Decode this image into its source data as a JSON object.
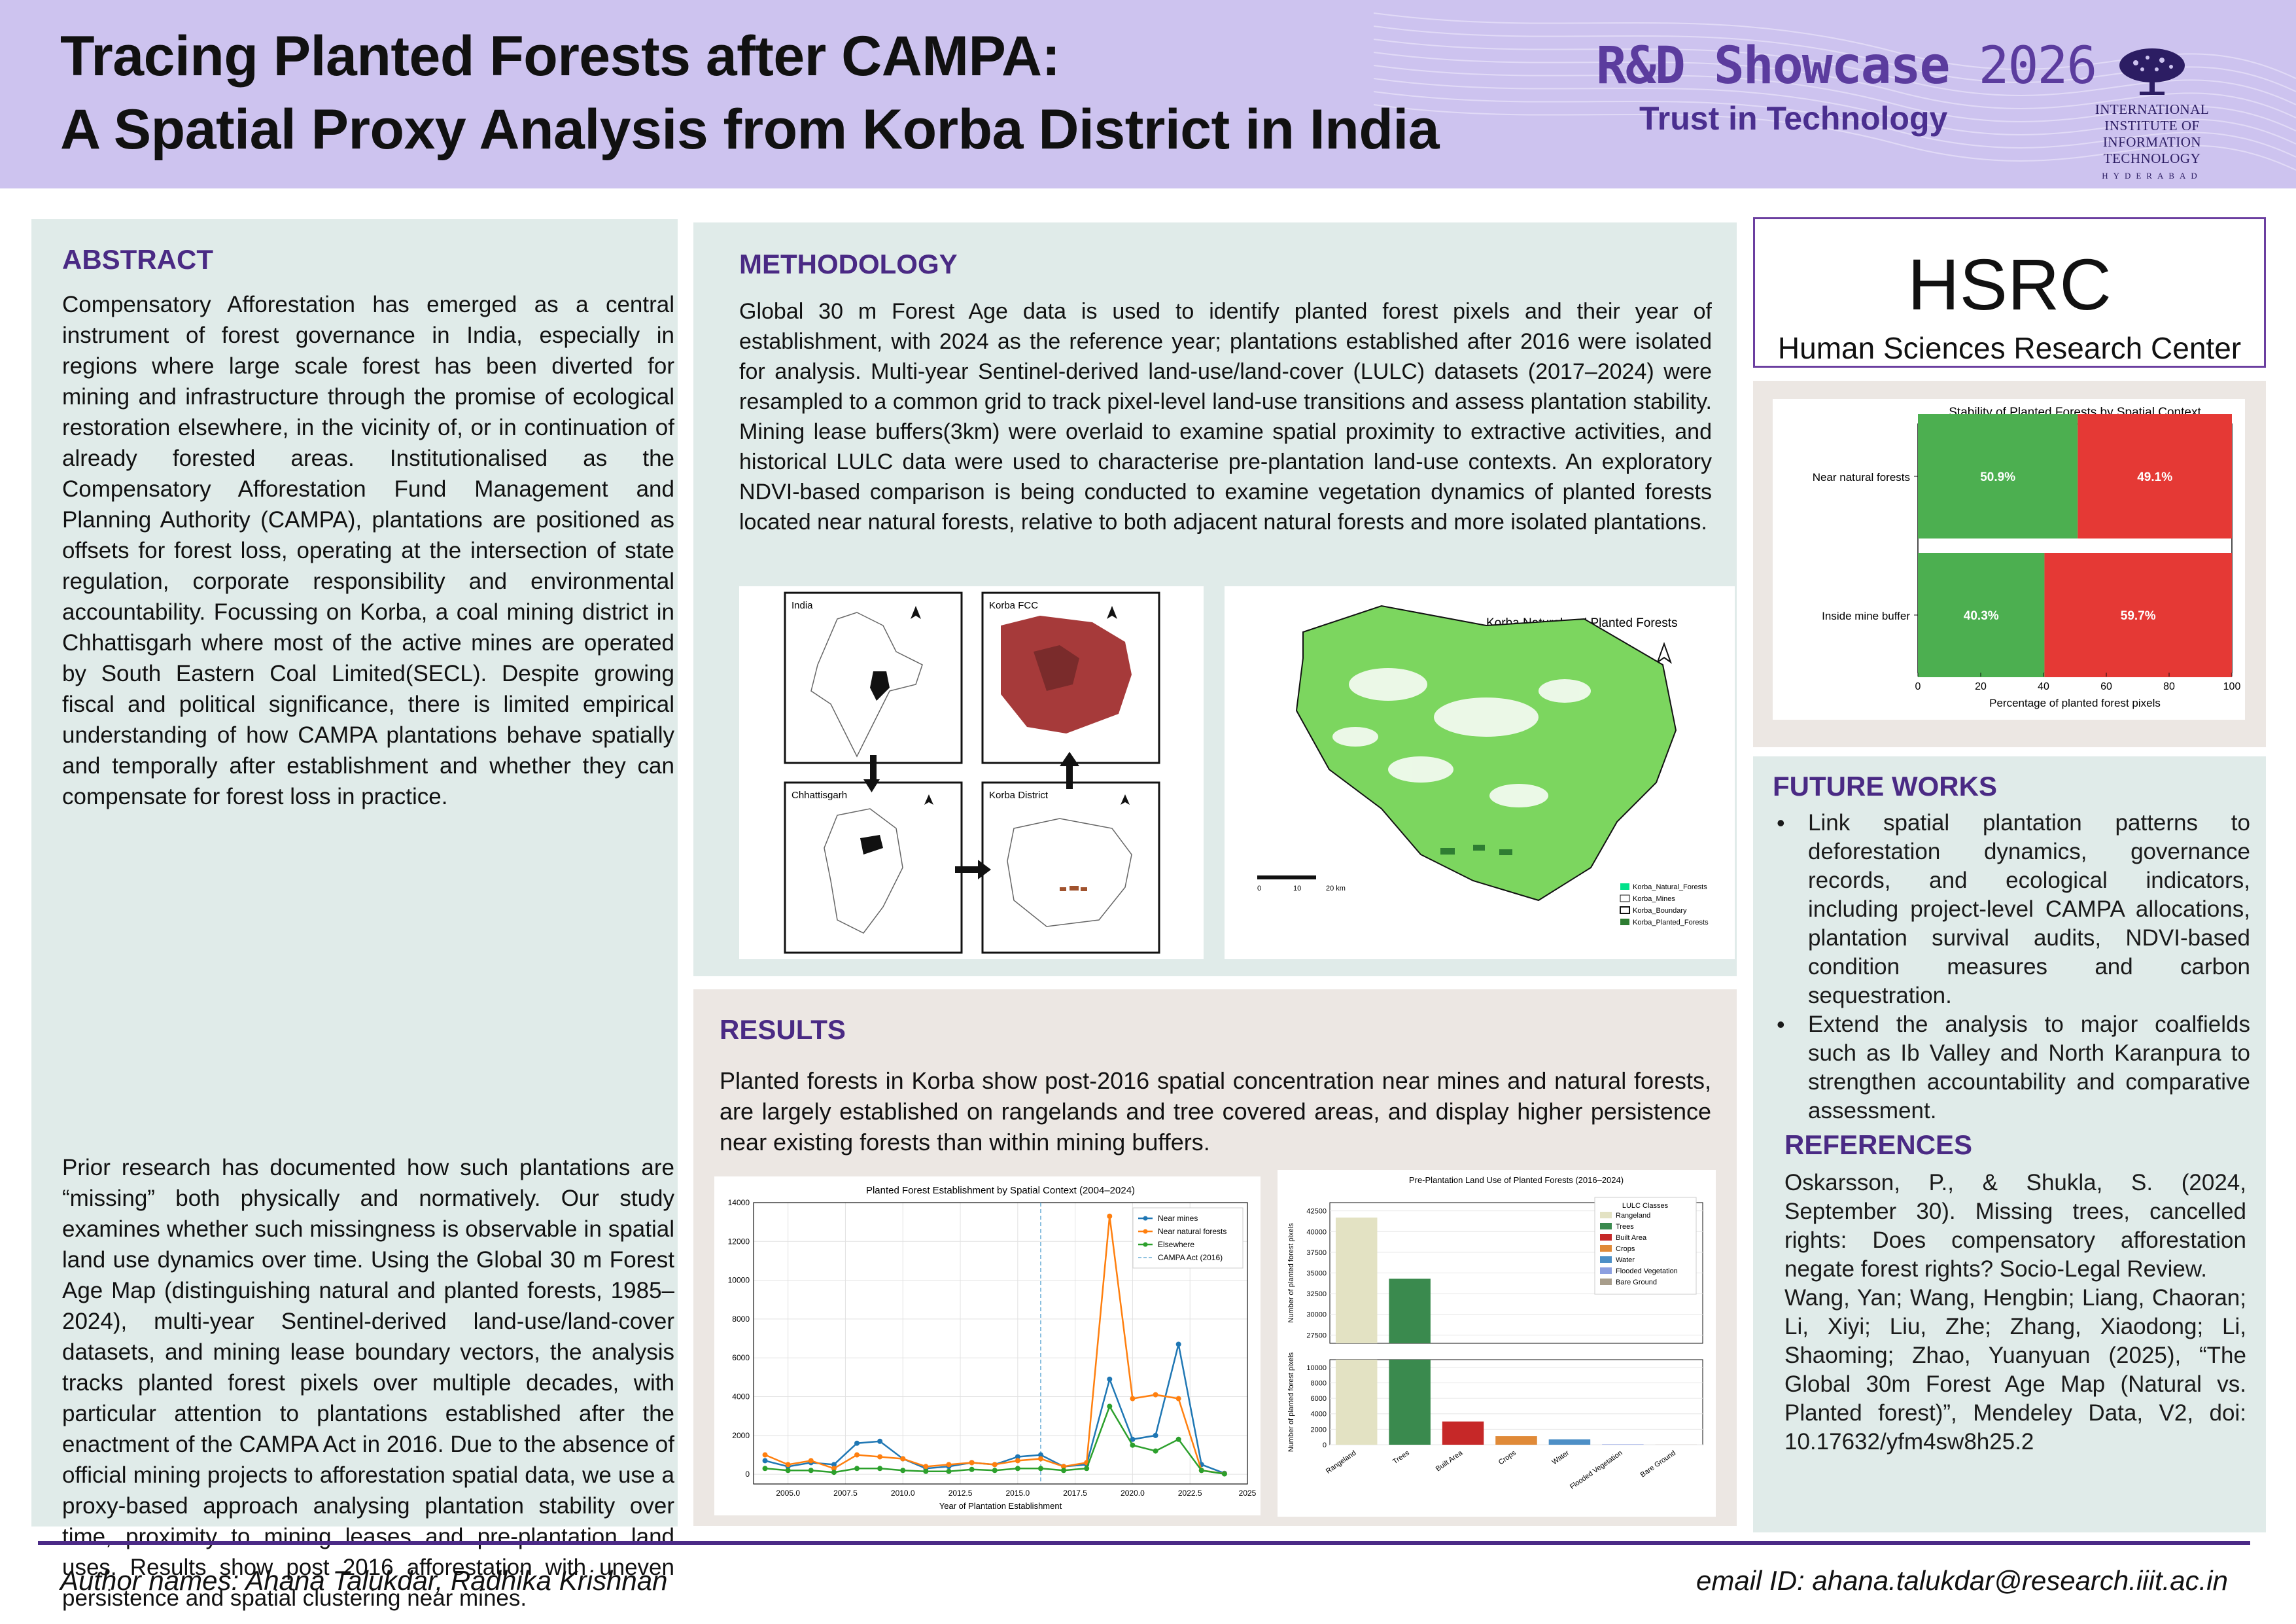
{
  "header": {
    "title_line1": "Tracing Planted Forests after CAMPA:",
    "title_line2": "A Spatial Proxy Analysis from Korba District in India",
    "showcase": "R&D Showcase",
    "showcase_year": "2026",
    "tagline": "Trust in Technology",
    "institute_line1": "INTERNATIONAL INSTITUTE OF",
    "institute_line2": "INFORMATION TECHNOLOGY",
    "institute_city": "HYDERABAD"
  },
  "abstract": {
    "heading": "ABSTRACT",
    "p1": "Compensatory Afforestation has emerged as a central instrument of forest governance in India, especially in regions where large scale forest has been diverted for mining and infrastructure through the promise of ecological restoration elsewhere, in the vicinity of, or in continuation of already forested areas. Institutionalised as the Compensatory Afforestation Fund Management and Planning Authority (CAMPA), plantations are positioned as offsets for forest loss, operating at the intersection of state regulation, corporate responsibility and environmental accountability. Focussing on Korba, a coal mining district in Chhattisgarh where most of the active mines are operated by South Eastern Coal Limited(SECL). Despite growing fiscal and political significance, there is limited empirical understanding of how CAMPA plantations behave spatially and temporally after establishment and whether they can compensate for forest loss in practice.",
    "p2": "Prior research has documented how such plantations are “missing” both physically and normatively. Our study examines whether such missingness is observable in spatial land use dynamics over time. Using the Global 30 m Forest Age Map (distinguishing natural and planted forests, 1985–2024), multi-year Sentinel-derived land-use/land-cover datasets, and mining lease boundary vectors, the analysis tracks planted forest pixels over multiple decades, with particular attention to plantations established after the enactment of the CAMPA Act in 2016. Due to the absence of official mining projects to afforestation spatial data, we use a proxy-based approach analysing plantation stability over time, proximity to mining leases and pre-plantation land uses. Results show post 2016 afforestation with uneven persistence and spatial clustering near mines."
  },
  "methodology": {
    "heading": "METHODOLOGY",
    "text": "Global 30 m Forest Age data is used to identify planted forest pixels and their year of establishment, with 2024 as the reference year; plantations established after 2016 were isolated for analysis. Multi-year Sentinel-derived land-use/land-cover (LULC) datasets (2017–2024) were resampled to a common grid to track pixel-level land-use transitions and assess plantation stability. Mining lease buffers(3km) were overlaid to examine spatial proximity to extractive activities, and historical LULC data were used to characterise pre-plantation land-use contexts. An exploratory NDVI-based comparison is being conducted to examine vegetation dynamics of planted forests located near natural forests, relative to both adjacent natural forests and more isolated plantations.",
    "map_panels": [
      "India",
      "Korba FCC",
      "Chhattisgarh",
      "Korba District"
    ],
    "korba_map": {
      "title": "Korba Natural and Planted Forests",
      "scale_labels": [
        "0",
        "10",
        "20 km"
      ],
      "legend": [
        "Korba_Natural_Forests",
        "Korba_Mines",
        "Korba_Boundary",
        "Korba_Planted_Forests"
      ]
    }
  },
  "results": {
    "heading": "RESULTS",
    "text": "Planted forests in Korba show post-2016 spatial concentration near mines and natural forests, are largely established on rangelands and tree covered areas, and display higher persistence near existing forests than within mining buffers."
  },
  "hsrc": {
    "name": "HSRC",
    "full": "Human Sciences Research Center"
  },
  "future": {
    "heading": "FUTURE WORKS",
    "items": [
      "Link spatial plantation patterns to deforestation dynamics, governance records, and ecological indicators, including project-level CAMPA allocations, plantation survival audits, NDVI-based condition measures and carbon sequestration.",
      "Extend the analysis to major coalfields such as Ib Valley and North Karanpura to strengthen accountability and comparative assessment."
    ]
  },
  "references": {
    "heading": "REFERENCES",
    "r1": "Oskarsson, P., & Shukla, S. (2024, September 30). Missing trees, cancelled rights: Does compensatory afforestation negate forest rights? Socio-Legal Review.",
    "r2": "Wang, Yan; Wang, Hengbin; Liang, Chaoran; Li, Xiyi; Liu, Zhe; Zhang, Xiaodong; Li, Shaoming; Zhao, Yuanyuan (2025), “The Global 30m Forest Age Map (Natural vs. Planted forest)”, Mendeley Data, V2, doi: 10.17632/yfm4sw8h25.2"
  },
  "footer": {
    "authors": "Author names: Ahana Talukdar,  Radhika Krishnan",
    "email": "email ID: ahana.talukdar@research.iiit.ac.in"
  },
  "chart_data": [
    {
      "type": "bar",
      "title": "Stability of Planted Forests by Spatial Context",
      "xlabel": "Percentage of planted forest pixels",
      "ylabel": "",
      "xlim": [
        0,
        100
      ],
      "xticks": [
        0,
        20,
        40,
        60,
        80,
        100
      ],
      "categories": [
        "Near natural forests",
        "Inside mine buffer"
      ],
      "series": [
        {
          "values": [
            50.9,
            40.3
          ],
          "labels": [
            "50.9%",
            "40.3%"
          ],
          "color": "#4caf50"
        },
        {
          "values": [
            49.1,
            59.7
          ],
          "labels": [
            "49.1%",
            "59.7%"
          ],
          "color": "#e53935"
        }
      ],
      "stacked": true
    },
    {
      "type": "line",
      "title": "Planted Forest Establishment by Spatial Context (2004–2024)",
      "xlabel": "Year of Plantation Establishment",
      "ylabel": "",
      "xlim": [
        2003.5,
        2025
      ],
      "ylim": [
        -500,
        14000
      ],
      "xticks": [
        "2005.0",
        "2007.5",
        "2010.0",
        "2012.5",
        "2015.0",
        "2017.5",
        "2020.0",
        "2022.5",
        "2025"
      ],
      "yticks": [
        "0",
        "2000",
        "4000",
        "6000",
        "8000",
        "10000",
        "12000",
        "14000"
      ],
      "x": [
        2004,
        2005,
        2006,
        2007,
        2008,
        2009,
        2010,
        2011,
        2012,
        2013,
        2014,
        2015,
        2016,
        2017,
        2018,
        2019,
        2020,
        2021,
        2022,
        2023,
        2024
      ],
      "series": [
        {
          "name": "Near mines",
          "color": "#1f77b4",
          "values": [
            700,
            400,
            600,
            500,
            1600,
            1700,
            800,
            300,
            400,
            600,
            500,
            900,
            1000,
            400,
            500,
            4900,
            1800,
            2000,
            6700,
            500,
            50
          ]
        },
        {
          "name": "Near natural forests",
          "color": "#ff7f0e",
          "values": [
            1000,
            500,
            700,
            300,
            1000,
            900,
            800,
            400,
            500,
            600,
            500,
            700,
            800,
            400,
            600,
            13300,
            3900,
            4100,
            3900,
            200,
            30
          ]
        },
        {
          "name": "Elsewhere",
          "color": "#2ca02c",
          "values": [
            300,
            200,
            200,
            100,
            300,
            300,
            200,
            150,
            150,
            250,
            200,
            300,
            300,
            200,
            300,
            3500,
            1500,
            1200,
            1800,
            200,
            20
          ]
        }
      ],
      "reference_line": {
        "x": 2016,
        "name": "CAMPA Act (2016)"
      }
    },
    {
      "type": "bar",
      "title": "Pre-Plantation Land Use of Planted Forests (2016–2024)",
      "ylabel": "Number of planted forest pixels",
      "legend_title": "LULC Classes",
      "categories": [
        "Rangeland",
        "Trees",
        "Built Area",
        "Crops",
        "Water",
        "Flooded Vegetation",
        "Bare Ground"
      ],
      "values": [
        41700,
        34300,
        3000,
        1100,
        700,
        50,
        10
      ],
      "colors": [
        "#e3e2c3",
        "#3a8a4e",
        "#c62828",
        "#e08a38",
        "#4d8fc6",
        "#8c9fe0",
        "#a89d8b"
      ],
      "yticks_upper": [
        "27500",
        "30000",
        "32500",
        "35000",
        "37500",
        "40000",
        "42500"
      ],
      "yticks_lower": [
        "0",
        "2000",
        "4000",
        "6000",
        "8000",
        "10000"
      ],
      "broken_axis": true
    }
  ]
}
